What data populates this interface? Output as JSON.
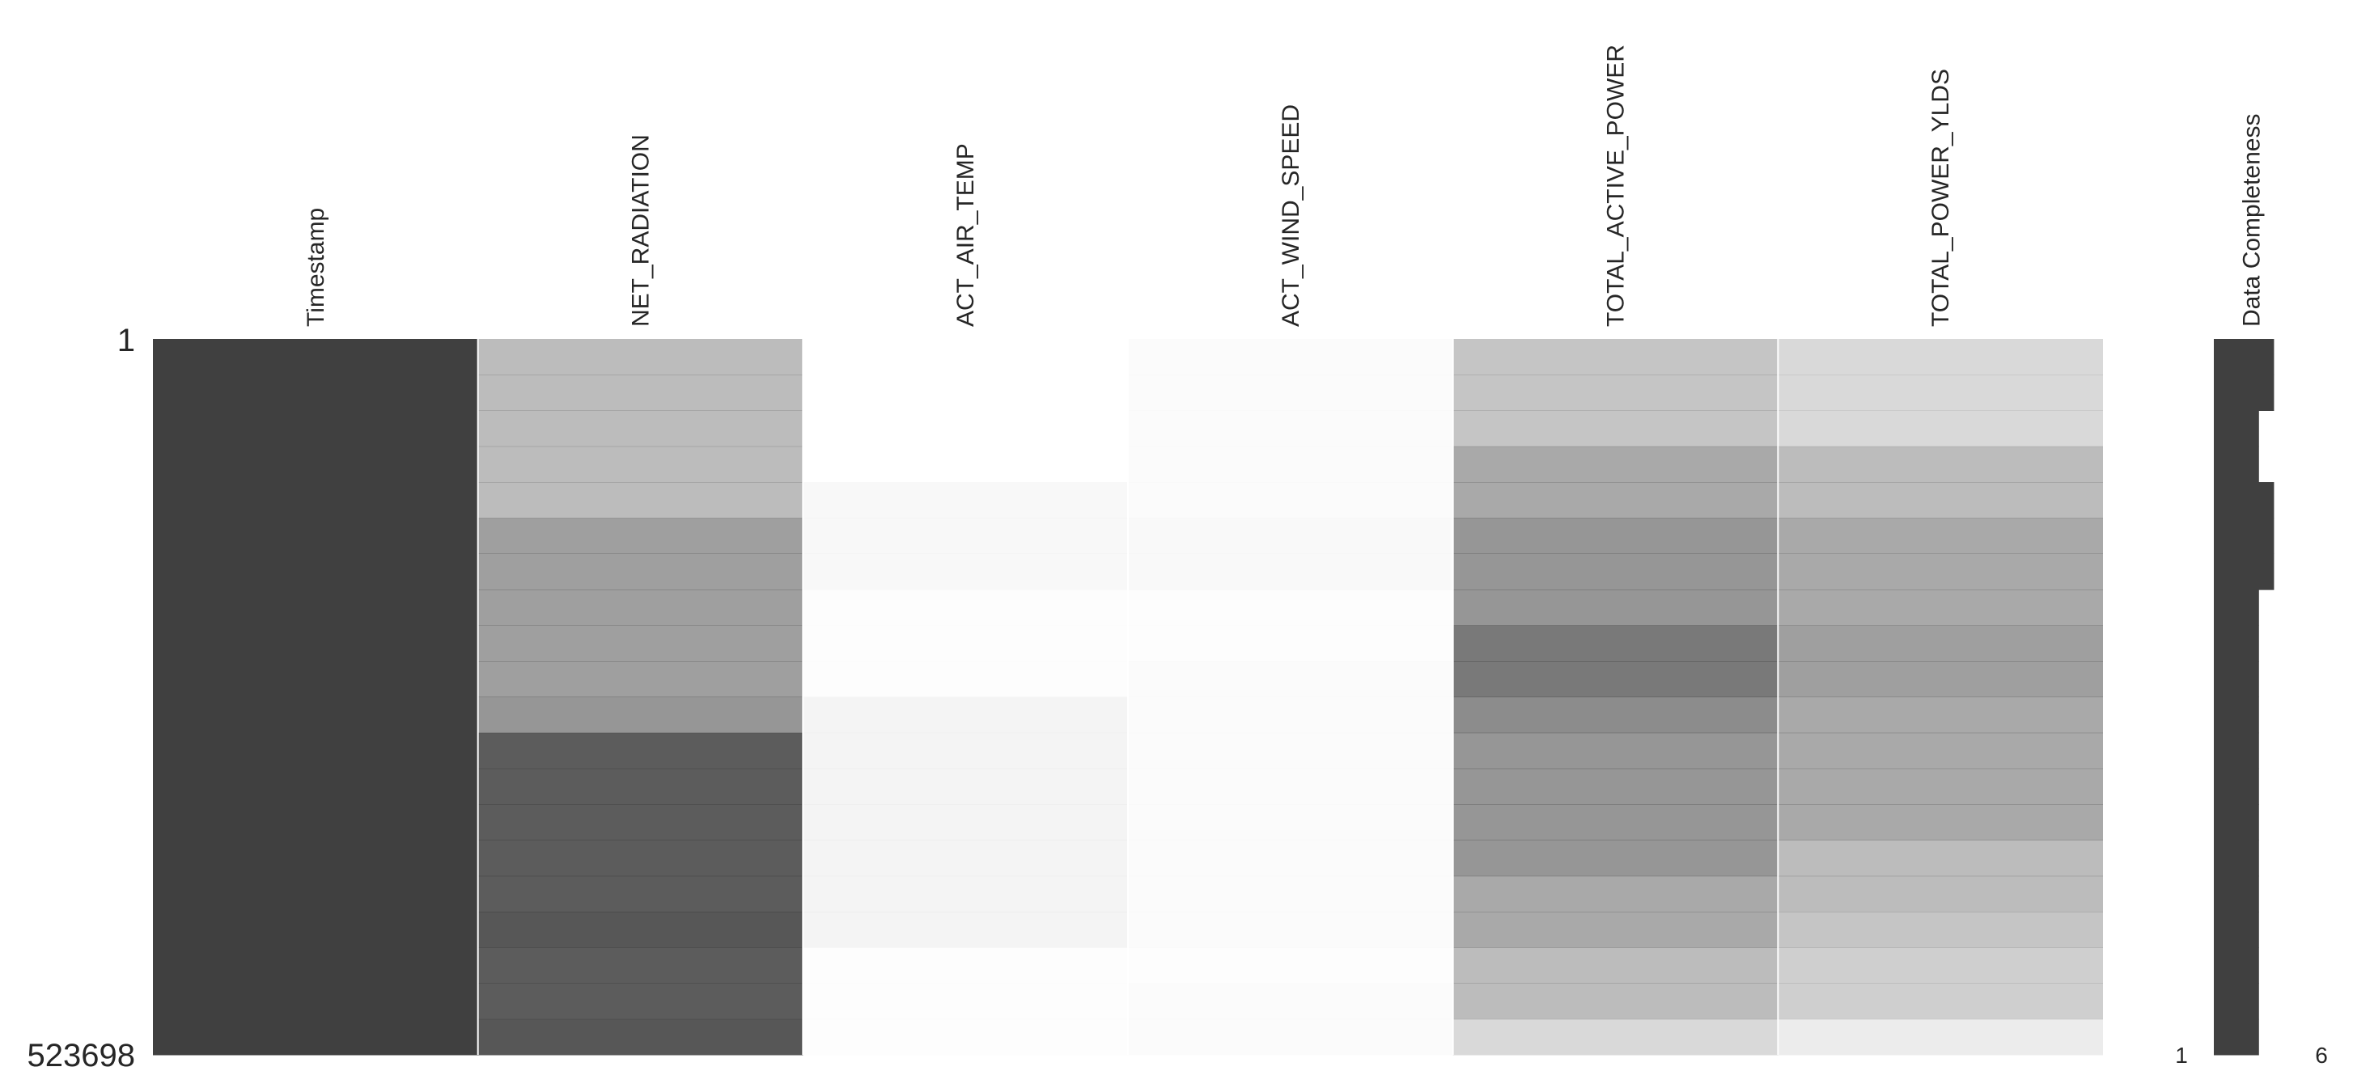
{
  "chart_data": {
    "type": "matrix",
    "color": "#404040",
    "ylim": [
      1,
      523698
    ],
    "series": [
      {
        "name": "Timestamp",
        "values": [
          1,
          1,
          1,
          1,
          1,
          1,
          1,
          1,
          1,
          1,
          1,
          1,
          1,
          1,
          1,
          1,
          1,
          1,
          1,
          1
        ]
      },
      {
        "name": "NET_RADIATION",
        "values": [
          0.35,
          0.35,
          0.35,
          0.35,
          0.35,
          0.5,
          0.5,
          0.5,
          0.5,
          0.5,
          0.55,
          0.85,
          0.85,
          0.85,
          0.85,
          0.85,
          0.88,
          0.85,
          0.85,
          0.88
        ]
      },
      {
        "name": "ACT_AIR_TEMP",
        "values": [
          0,
          0,
          0,
          0,
          0.04,
          0.04,
          0.04,
          0.01,
          0.01,
          0.01,
          0.06,
          0.06,
          0.06,
          0.06,
          0.06,
          0.06,
          0.06,
          0.01,
          0.01,
          0.01
        ]
      },
      {
        "name": "ACT_WIND_SPEED",
        "values": [
          0.02,
          0.02,
          0.02,
          0.02,
          0.02,
          0.03,
          0.03,
          0.01,
          0.01,
          0.02,
          0.02,
          0.02,
          0.02,
          0.02,
          0.02,
          0.02,
          0.02,
          0.01,
          0.02,
          0.02
        ]
      },
      {
        "name": "TOTAL_ACTIVE_POWER",
        "values": [
          0.3,
          0.3,
          0.3,
          0.45,
          0.45,
          0.55,
          0.55,
          0.55,
          0.7,
          0.7,
          0.6,
          0.55,
          0.55,
          0.55,
          0.55,
          0.45,
          0.45,
          0.35,
          0.35,
          0.2
        ]
      },
      {
        "name": "TOTAL_POWER_YLDS",
        "values": [
          0.2,
          0.2,
          0.2,
          0.35,
          0.35,
          0.45,
          0.45,
          0.45,
          0.5,
          0.5,
          0.45,
          0.45,
          0.45,
          0.45,
          0.35,
          0.35,
          0.3,
          0.25,
          0.25,
          0.1
        ]
      }
    ],
    "completeness": {
      "label": "Data Completeness",
      "xlim": [
        1,
        6
      ],
      "values": [
        5,
        5,
        4,
        4,
        5,
        5,
        5,
        4,
        4,
        4,
        4,
        4,
        4,
        4,
        4,
        4,
        4,
        4,
        4,
        4
      ]
    }
  }
}
